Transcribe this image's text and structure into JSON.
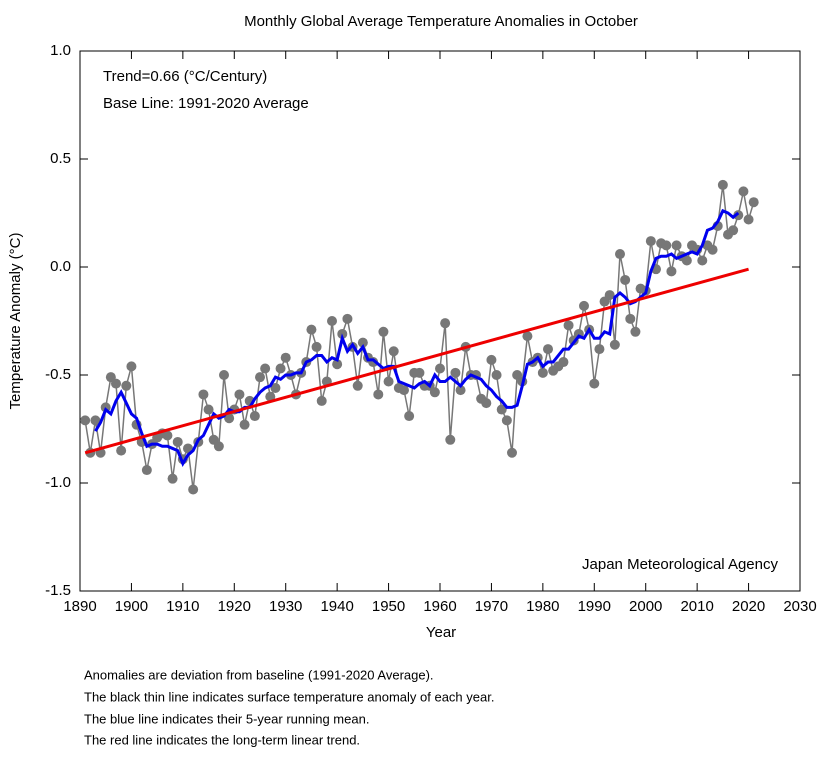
{
  "chart_data": {
    "type": "line",
    "title": "Monthly Global Average Temperature Anomalies in October",
    "xlabel": "Year",
    "ylabel": "Temperature Anomaly (°C)",
    "annotations": [
      "Trend=0.66 (°C/Century)",
      "Base Line: 1991-2020 Average"
    ],
    "source": "Japan Meteorological Agency",
    "notes": [
      "Anomalies are deviation from baseline (1991-2020 Average).",
      "The black thin line indicates surface temperature anomaly of each year.",
      "The blue line indicates their 5-year running mean.",
      "The red line indicates the long-term linear trend."
    ],
    "xlim": [
      1890,
      2030
    ],
    "xticks": [
      1890,
      1900,
      1910,
      1920,
      1930,
      1940,
      1950,
      1960,
      1970,
      1980,
      1990,
      2000,
      2010,
      2020,
      2030
    ],
    "ylim": [
      -1.5,
      1.0
    ],
    "yticks": [
      {
        "value": 1.0,
        "label": "1.0"
      },
      0.5,
      {
        "value": 0.0,
        "label": "0.0"
      },
      -0.5,
      {
        "value": -1.0,
        "label": "-1.0"
      },
      -1.5
    ],
    "series": [
      {
        "color": "#777777",
        "markers": true,
        "x": [
          1891,
          1892,
          1893,
          1894,
          1895,
          1896,
          1897,
          1898,
          1899,
          1900,
          1901,
          1902,
          1903,
          1904,
          1905,
          1906,
          1907,
          1908,
          1909,
          1910,
          1911,
          1912,
          1913,
          1914,
          1915,
          1916,
          1917,
          1918,
          1919,
          1920,
          1921,
          1922,
          1923,
          1924,
          1925,
          1926,
          1927,
          1928,
          1929,
          1930,
          1931,
          1932,
          1933,
          1934,
          1935,
          1936,
          1937,
          1938,
          1939,
          1940,
          1941,
          1942,
          1943,
          1944,
          1945,
          1946,
          1947,
          1948,
          1949,
          1950,
          1951,
          1952,
          1953,
          1954,
          1955,
          1956,
          1957,
          1958,
          1959,
          1960,
          1961,
          1962,
          1963,
          1964,
          1965,
          1966,
          1967,
          1968,
          1969,
          1970,
          1971,
          1972,
          1973,
          1974,
          1975,
          1976,
          1977,
          1978,
          1979,
          1980,
          1981,
          1982,
          1983,
          1984,
          1985,
          1986,
          1987,
          1988,
          1989,
          1990,
          1991,
          1992,
          1993,
          1994,
          1995,
          1996,
          1997,
          1998,
          1999,
          2000,
          2001,
          2002,
          2003,
          2004,
          2005,
          2006,
          2007,
          2008,
          2009,
          2010,
          2011,
          2012,
          2013,
          2014,
          2015,
          2016,
          2017,
          2018,
          2019,
          2020,
          2021
        ],
        "values": [
          -0.71,
          -0.86,
          -0.71,
          -0.86,
          -0.65,
          -0.51,
          -0.54,
          -0.85,
          -0.55,
          -0.46,
          -0.73,
          -0.81,
          -0.94,
          -0.82,
          -0.79,
          -0.77,
          -0.78,
          -0.98,
          -0.81,
          -0.89,
          -0.84,
          -1.03,
          -0.81,
          -0.59,
          -0.66,
          -0.8,
          -0.83,
          -0.5,
          -0.7,
          -0.66,
          -0.59,
          -0.73,
          -0.62,
          -0.69,
          -0.51,
          -0.47,
          -0.6,
          -0.56,
          -0.47,
          -0.42,
          -0.5,
          -0.59,
          -0.49,
          -0.44,
          -0.29,
          -0.37,
          -0.62,
          -0.53,
          -0.25,
          -0.45,
          -0.31,
          -0.24,
          -0.37,
          -0.55,
          -0.35,
          -0.42,
          -0.44,
          -0.59,
          -0.3,
          -0.53,
          -0.39,
          -0.56,
          -0.57,
          -0.69,
          -0.49,
          -0.49,
          -0.55,
          -0.55,
          -0.58,
          -0.47,
          -0.26,
          -0.8,
          -0.49,
          -0.57,
          -0.37,
          -0.5,
          -0.5,
          -0.61,
          -0.63,
          -0.43,
          -0.5,
          -0.66,
          -0.71,
          -0.86,
          -0.5,
          -0.53,
          -0.32,
          -0.44,
          -0.42,
          -0.49,
          -0.38,
          -0.48,
          -0.46,
          -0.44,
          -0.27,
          -0.34,
          -0.31,
          -0.18,
          -0.29,
          -0.54,
          -0.38,
          -0.16,
          -0.13,
          -0.36,
          0.06,
          -0.06,
          -0.24,
          -0.3,
          -0.1,
          -0.11,
          0.12,
          -0.01,
          0.11,
          0.1,
          -0.02,
          0.1,
          0.05,
          0.03,
          0.1,
          0.08,
          0.03,
          0.1,
          0.08,
          0.19,
          0.38,
          0.15,
          0.17,
          0.24,
          0.35,
          0.22,
          0.3
        ]
      },
      {
        "color": "#0000ee",
        "markers": false,
        "x": [
          1893,
          1894,
          1895,
          1896,
          1897,
          1898,
          1899,
          1900,
          1901,
          1902,
          1903,
          1904,
          1905,
          1906,
          1907,
          1908,
          1909,
          1910,
          1911,
          1912,
          1913,
          1914,
          1915,
          1916,
          1917,
          1918,
          1919,
          1920,
          1921,
          1922,
          1923,
          1924,
          1925,
          1926,
          1927,
          1928,
          1929,
          1930,
          1931,
          1932,
          1933,
          1934,
          1935,
          1936,
          1937,
          1938,
          1939,
          1940,
          1941,
          1942,
          1943,
          1944,
          1945,
          1946,
          1947,
          1948,
          1949,
          1950,
          1951,
          1952,
          1953,
          1954,
          1955,
          1956,
          1957,
          1958,
          1959,
          1960,
          1961,
          1962,
          1963,
          1964,
          1965,
          1966,
          1967,
          1968,
          1969,
          1970,
          1971,
          1972,
          1973,
          1974,
          1975,
          1976,
          1977,
          1978,
          1979,
          1980,
          1981,
          1982,
          1983,
          1984,
          1985,
          1986,
          1987,
          1988,
          1989,
          1990,
          1991,
          1992,
          1993,
          1994,
          1995,
          1996,
          1997,
          1998,
          1999,
          2000,
          2001,
          2002,
          2003,
          2004,
          2005,
          2006,
          2007,
          2008,
          2009,
          2010,
          2011,
          2012,
          2013,
          2014,
          2015,
          2016,
          2017,
          2018
        ],
        "values": [
          -0.76,
          -0.72,
          -0.66,
          -0.68,
          -0.62,
          -0.58,
          -0.63,
          -0.68,
          -0.7,
          -0.77,
          -0.83,
          -0.82,
          -0.82,
          -0.83,
          -0.83,
          -0.84,
          -0.85,
          -0.91,
          -0.87,
          -0.85,
          -0.8,
          -0.78,
          -0.73,
          -0.68,
          -0.7,
          -0.69,
          -0.66,
          -0.67,
          -0.67,
          -0.65,
          -0.65,
          -0.61,
          -0.58,
          -0.56,
          -0.55,
          -0.51,
          -0.52,
          -0.5,
          -0.5,
          -0.49,
          -0.49,
          -0.44,
          -0.43,
          -0.41,
          -0.41,
          -0.44,
          -0.42,
          -0.43,
          -0.33,
          -0.39,
          -0.36,
          -0.4,
          -0.37,
          -0.43,
          -0.43,
          -0.45,
          -0.47,
          -0.46,
          -0.46,
          -0.53,
          -0.54,
          -0.55,
          -0.56,
          -0.54,
          -0.53,
          -0.55,
          -0.5,
          -0.53,
          -0.53,
          -0.51,
          -0.53,
          -0.55,
          -0.52,
          -0.5,
          -0.51,
          -0.52,
          -0.55,
          -0.57,
          -0.6,
          -0.62,
          -0.65,
          -0.65,
          -0.64,
          -0.55,
          -0.45,
          -0.44,
          -0.42,
          -0.46,
          -0.44,
          -0.44,
          -0.41,
          -0.38,
          -0.38,
          -0.35,
          -0.32,
          -0.33,
          -0.29,
          -0.33,
          -0.33,
          -0.3,
          -0.31,
          -0.14,
          -0.12,
          -0.14,
          -0.17,
          -0.16,
          -0.14,
          -0.12,
          -0.02,
          0.04,
          0.05,
          0.05,
          0.06,
          0.04,
          0.05,
          0.06,
          0.07,
          0.06,
          0.1,
          0.17,
          0.18,
          0.21,
          0.26,
          0.25,
          0.23,
          0.25
        ]
      },
      {
        "color": "#ee0000",
        "markers": false,
        "x": [
          1891,
          2020
        ],
        "values": [
          -0.86,
          -0.01
        ]
      }
    ]
  }
}
